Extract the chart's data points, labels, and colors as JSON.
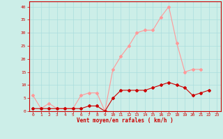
{
  "x": [
    0,
    1,
    2,
    3,
    4,
    5,
    6,
    7,
    8,
    9,
    10,
    11,
    12,
    13,
    14,
    15,
    16,
    17,
    18,
    19,
    20,
    21,
    22,
    23
  ],
  "y_rafales": [
    6,
    1,
    3,
    1,
    1,
    1,
    6,
    7,
    7,
    0,
    16,
    21,
    25,
    30,
    31,
    31,
    36,
    40,
    26,
    15,
    16,
    16,
    null,
    null
  ],
  "y_moyen": [
    1,
    1,
    1,
    1,
    1,
    1,
    1,
    2,
    2,
    0,
    5,
    8,
    8,
    8,
    8,
    9,
    10,
    11,
    10,
    9,
    6,
    7,
    8,
    null
  ],
  "bg_color": "#cceee8",
  "grid_color": "#aadddd",
  "line_color_rafales": "#ff9999",
  "line_color_moyen": "#cc0000",
  "xlabel": "Vent moyen/en rafales ( km/h )",
  "ylim": [
    0,
    42
  ],
  "xlim": [
    -0.5,
    23.5
  ],
  "yticks": [
    0,
    5,
    10,
    15,
    20,
    25,
    30,
    35,
    40
  ],
  "xticks": [
    0,
    1,
    2,
    3,
    4,
    5,
    6,
    7,
    8,
    9,
    10,
    11,
    12,
    13,
    14,
    15,
    16,
    17,
    18,
    19,
    20,
    21,
    22,
    23
  ]
}
